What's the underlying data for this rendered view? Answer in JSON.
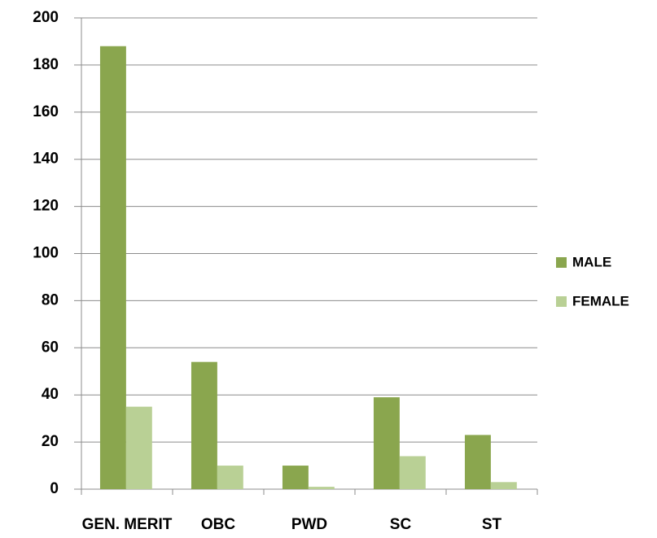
{
  "chart_data": {
    "type": "bar",
    "categories": [
      "GEN. MERIT",
      "OBC",
      "PWD",
      "SC",
      "ST"
    ],
    "series": [
      {
        "name": "MALE",
        "color": "#8aa64e",
        "values": [
          188,
          54,
          10,
          39,
          23
        ]
      },
      {
        "name": "FEMALE",
        "color": "#b9d095",
        "values": [
          35,
          10,
          1,
          14,
          3
        ]
      }
    ],
    "ylim": [
      0,
      200
    ],
    "yticks": [
      0,
      20,
      40,
      60,
      80,
      100,
      120,
      140,
      160,
      180,
      200
    ],
    "grid": true,
    "legend": "right"
  }
}
